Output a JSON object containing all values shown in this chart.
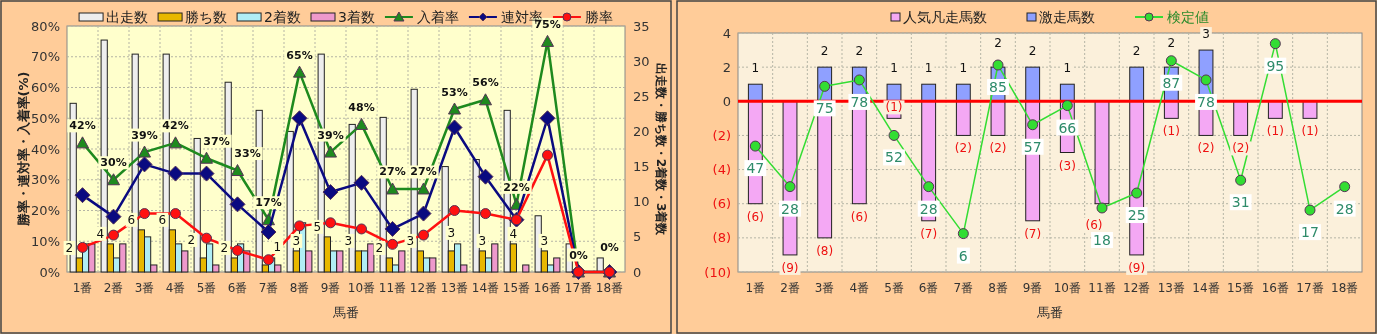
{
  "chart_data": [
    {
      "type": "bar",
      "xlabel": "馬番",
      "ylabel": "勝率・連対率・入着率(%)",
      "y2label": "出走数・勝ち数・2着数・3着数",
      "grid": true,
      "legend": "top",
      "categories": [
        "1番",
        "2番",
        "3番",
        "4番",
        "5番",
        "6番",
        "7番",
        "8番",
        "9番",
        "10番",
        "11番",
        "12番",
        "13番",
        "14番",
        "15番",
        "16番",
        "17番",
        "18番"
      ],
      "ylim": [
        0,
        80
      ],
      "yticks": [
        {
          "value": 0,
          "label": "0%"
        },
        {
          "value": 10,
          "label": "10%"
        },
        {
          "value": 20,
          "label": "20%"
        },
        {
          "value": 30,
          "label": "30%"
        },
        {
          "value": 40,
          "label": "40%"
        },
        {
          "value": 50,
          "label": "50%"
        },
        {
          "value": 60,
          "label": "60%"
        },
        {
          "value": 70,
          "label": "70%"
        },
        {
          "value": 80,
          "label": "80%"
        }
      ],
      "y2lim": [
        0,
        35
      ],
      "y2ticks": [
        0,
        5,
        10,
        15,
        20,
        25,
        30,
        35
      ],
      "series": [
        {
          "name": "出走数",
          "color": "#eeeeee",
          "axis": "y2",
          "values": [
            24,
            33,
            31,
            31,
            19,
            27,
            23,
            20,
            31,
            21,
            22,
            26,
            15,
            16,
            23,
            8,
            4,
            2
          ]
        },
        {
          "name": "勝ち数",
          "color": "#e8b800",
          "axis": "y2",
          "values": [
            2,
            4,
            6,
            6,
            2,
            2,
            1,
            3,
            5,
            3,
            2,
            3,
            3,
            3,
            4,
            3,
            0,
            0
          ],
          "value_labels": [
            "2",
            "4",
            "6",
            "6",
            "2",
            "2",
            "1",
            "3",
            "5",
            "3",
            "2",
            "3",
            "3",
            "3",
            "4",
            "3",
            null,
            null
          ]
        },
        {
          "name": "2着数",
          "color": "#b0eef5",
          "axis": "y2",
          "values": [
            4,
            2,
            5,
            4,
            4,
            4,
            2,
            7,
            3,
            3,
            1,
            2,
            4,
            2,
            0,
            1,
            0,
            0
          ]
        },
        {
          "name": "3着数",
          "color": "#ee99cc",
          "axis": "y2",
          "values": [
            4,
            4,
            1,
            3,
            1,
            3,
            1,
            3,
            3,
            4,
            3,
            2,
            1,
            4,
            1,
            2,
            0,
            0
          ]
        },
        {
          "name": "入着率",
          "type": "line",
          "color": "#1e8a1e",
          "marker": "triangle",
          "values": [
            42,
            30,
            39,
            42,
            37,
            33,
            17,
            65,
            39,
            48,
            27,
            27,
            53,
            56,
            22,
            75,
            0,
            0
          ],
          "value_labels": [
            "42%",
            "30%",
            "39%",
            "42%",
            "37%",
            "33%",
            "17%",
            "65%",
            "39%",
            "48%",
            "27%",
            "27%",
            "53%",
            "56%",
            "22%",
            "75%",
            "0%",
            "0%"
          ]
        },
        {
          "name": "連対率",
          "type": "line",
          "color": "#0a0a80",
          "marker": "diamond",
          "values": [
            25,
            18,
            35,
            32,
            32,
            22,
            13,
            50,
            26,
            29,
            14,
            19,
            47,
            31,
            17,
            50,
            0,
            0
          ]
        },
        {
          "name": "勝率",
          "type": "line",
          "color": "#ff1010",
          "marker": "circle",
          "values": [
            8,
            12,
            19,
            19,
            11,
            7,
            4,
            15,
            16,
            14,
            9,
            12,
            20,
            19,
            17,
            38,
            0,
            0
          ]
        }
      ]
    },
    {
      "type": "bar",
      "stacked": true,
      "xlabel": "馬番",
      "grid": true,
      "legend": "top",
      "categories": [
        "1番",
        "2番",
        "3番",
        "4番",
        "5番",
        "6番",
        "7番",
        "8番",
        "9番",
        "10番",
        "11番",
        "12番",
        "13番",
        "14番",
        "15番",
        "16番",
        "17番",
        "18番"
      ],
      "ylim": [
        -10,
        4
      ],
      "yticks": [
        4,
        2,
        0,
        {
          "value": -2,
          "label": "(2)"
        },
        {
          "value": -4,
          "label": "(4)"
        },
        {
          "value": -6,
          "label": "(6)"
        },
        {
          "value": -8,
          "label": "(8)"
        },
        {
          "value": -10,
          "label": "(10)"
        }
      ],
      "y2lim": [
        -12,
        100
      ],
      "ref_lines": [
        {
          "axis": "y",
          "value": 0,
          "color": "#ff0000"
        }
      ],
      "series": [
        {
          "name": "人気凡走馬数",
          "color": "#f4a8f4",
          "values": [
            -6,
            -9,
            -8,
            -6,
            -1,
            -7,
            -2,
            -2,
            -7,
            -3,
            -6,
            -9,
            -1,
            -2,
            -2,
            -1,
            -1,
            0
          ],
          "value_labels": [
            "(6)",
            "(9)",
            "(8)",
            "(6)",
            "(1)",
            "(7)",
            "(2)",
            "(2)",
            "(7)",
            "(3)",
            "(6)",
            "(9)",
            "(1)",
            "(2)",
            "(2)",
            "(1)",
            "(1)",
            null
          ]
        },
        {
          "name": "激走馬数",
          "color": "#8fa0ff",
          "values": [
            1,
            0,
            2,
            2,
            1,
            1,
            1,
            2,
            2,
            1,
            0,
            2,
            2,
            3,
            0,
            0,
            0,
            0
          ],
          "value_labels": [
            "1",
            null,
            "2",
            "2",
            "1",
            "1",
            "1",
            "2",
            "2",
            "1",
            null,
            "2",
            "2",
            "3",
            null,
            null,
            null,
            null
          ]
        },
        {
          "name": "検定値",
          "type": "line",
          "axis": "y2",
          "color": "#33dd33",
          "marker": "circle",
          "values": [
            47,
            28,
            75,
            78,
            52,
            28,
            6,
            85,
            57,
            66,
            18,
            25,
            87,
            78,
            31,
            95,
            17,
            28
          ],
          "data_labels": true
        }
      ]
    }
  ]
}
